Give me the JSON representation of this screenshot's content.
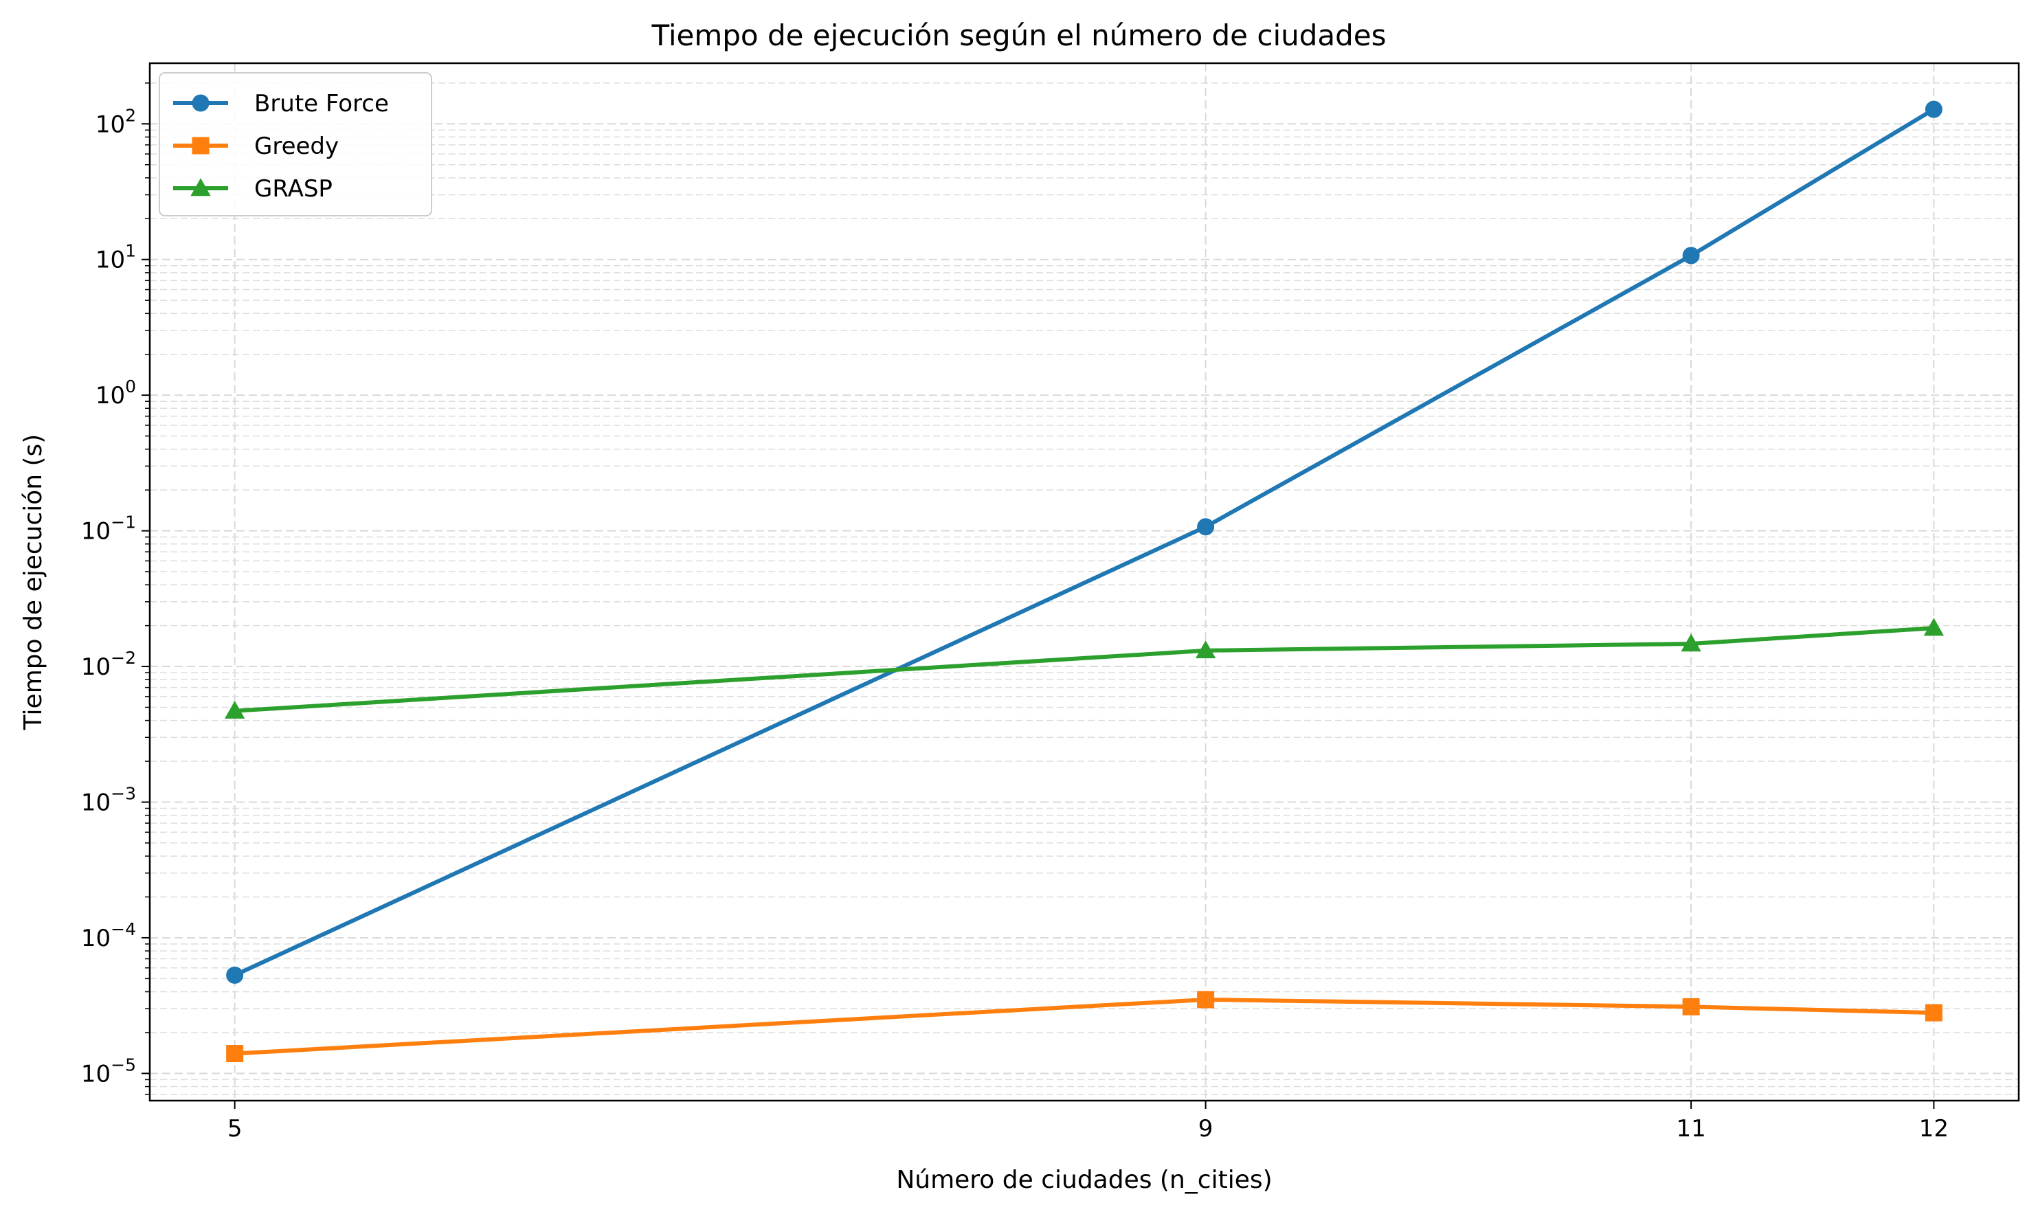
{
  "chart_data": {
    "type": "line",
    "title": "Tiempo de ejecución según el número de ciudades",
    "xlabel": "Número de ciudades (n_cities)",
    "ylabel": "Tiempo de ejecución (s)",
    "x": [
      5,
      9,
      11,
      12
    ],
    "xticks": [
      5,
      9,
      11,
      12
    ],
    "xlim": [
      4.65,
      12.35
    ],
    "yscale": "log",
    "ylim": [
      6.3e-06,
      280
    ],
    "yticks": [
      {
        "value": 1e-05,
        "mantissa": "10",
        "exponent": "−5"
      },
      {
        "value": 0.0001,
        "mantissa": "10",
        "exponent": "−4"
      },
      {
        "value": 0.001,
        "mantissa": "10",
        "exponent": "−3"
      },
      {
        "value": 0.01,
        "mantissa": "10",
        "exponent": "−2"
      },
      {
        "value": 0.1,
        "mantissa": "10",
        "exponent": "−1"
      },
      {
        "value": 1,
        "mantissa": "10",
        "exponent": "0"
      },
      {
        "value": 10,
        "mantissa": "10",
        "exponent": "1"
      },
      {
        "value": 100,
        "mantissa": "10",
        "exponent": "2"
      }
    ],
    "grid": true,
    "legend_position": "top-left",
    "series": [
      {
        "name": "Brute Force",
        "color": "#1f77b4",
        "marker": "circle",
        "values": [
          5.3e-05,
          0.107,
          10.7,
          128
        ]
      },
      {
        "name": "Greedy",
        "color": "#ff7f0e",
        "marker": "square",
        "values": [
          1.4e-05,
          3.5e-05,
          3.1e-05,
          2.8e-05
        ]
      },
      {
        "name": "GRASP",
        "color": "#2ca02c",
        "marker": "triangle",
        "values": [
          0.0047,
          0.0131,
          0.0147,
          0.0192
        ]
      }
    ]
  }
}
